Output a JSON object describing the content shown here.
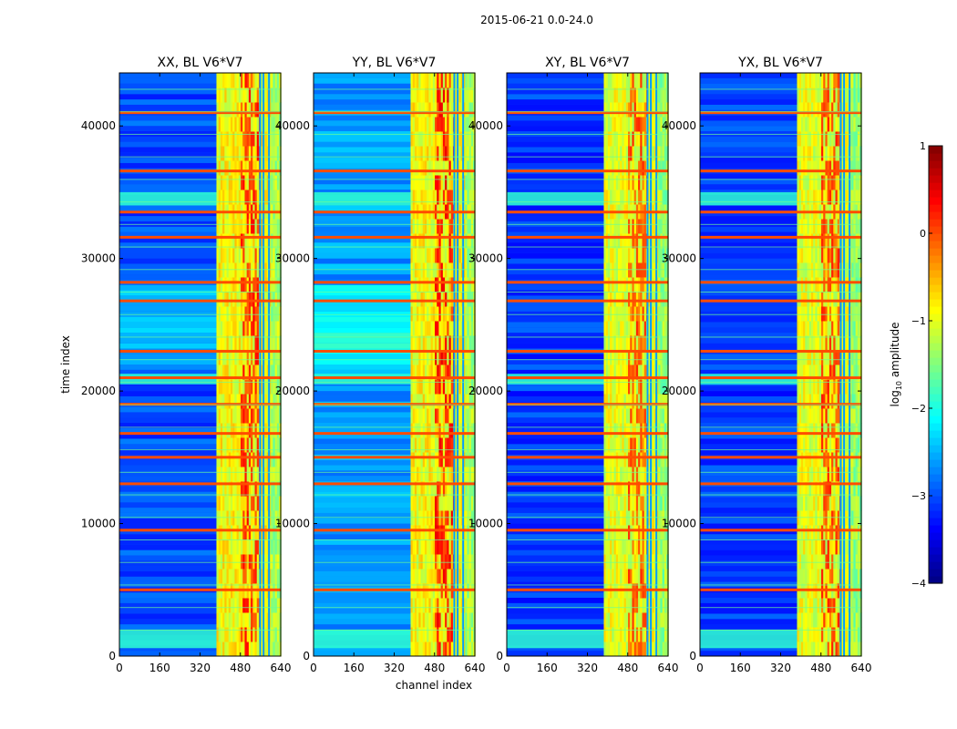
{
  "figure": {
    "suptitle": "2015-06-21 0.0-24.0",
    "xlabel": "channel index",
    "ylabel": "time index"
  },
  "colorbar": {
    "label_prefix": "log",
    "label_sub": "10",
    "label_suffix": " amplitude",
    "min": -4,
    "max": 1,
    "ticks": [
      "1",
      "0",
      "−1",
      "−2",
      "−3",
      "−4"
    ],
    "colormap": "jet"
  },
  "chart_data": [
    {
      "type": "heatmap",
      "title": "XX, BL V6*V7",
      "xlim": [
        0,
        640
      ],
      "ylim": [
        0,
        44000
      ],
      "xticks": [
        "0",
        "160",
        "320",
        "480",
        "640"
      ],
      "yticks": [
        "0",
        "10000",
        "20000",
        "30000",
        "40000"
      ],
      "band_start_channel": 385,
      "quiet_level": -3.0,
      "band_level": -0.9,
      "peak_level": 0.4
    },
    {
      "type": "heatmap",
      "title": "YY, BL V6*V7",
      "xlim": [
        0,
        640
      ],
      "ylim": [
        0,
        44000
      ],
      "xticks": [
        "0",
        "160",
        "320",
        "480",
        "640"
      ],
      "yticks": [
        "0",
        "10000",
        "20000",
        "30000",
        "40000"
      ],
      "band_start_channel": 385,
      "quiet_level": -2.6,
      "band_level": -0.9,
      "peak_level": 0.5
    },
    {
      "type": "heatmap",
      "title": "XY, BL V6*V7",
      "xlim": [
        0,
        640
      ],
      "ylim": [
        0,
        44000
      ],
      "xticks": [
        "0",
        "160",
        "320",
        "480",
        "640"
      ],
      "yticks": [
        "0",
        "10000",
        "20000",
        "30000",
        "40000"
      ],
      "band_start_channel": 385,
      "quiet_level": -3.1,
      "band_level": -1.0,
      "peak_level": 0.2
    },
    {
      "type": "heatmap",
      "title": "YX, BL V6*V7",
      "xlim": [
        0,
        640
      ],
      "ylim": [
        0,
        44000
      ],
      "xticks": [
        "0",
        "160",
        "320",
        "480",
        "640"
      ],
      "yticks": [
        "0",
        "10000",
        "20000",
        "30000",
        "40000"
      ],
      "band_start_channel": 385,
      "quiet_level": -3.1,
      "band_level": -1.0,
      "peak_level": 0.3
    }
  ]
}
